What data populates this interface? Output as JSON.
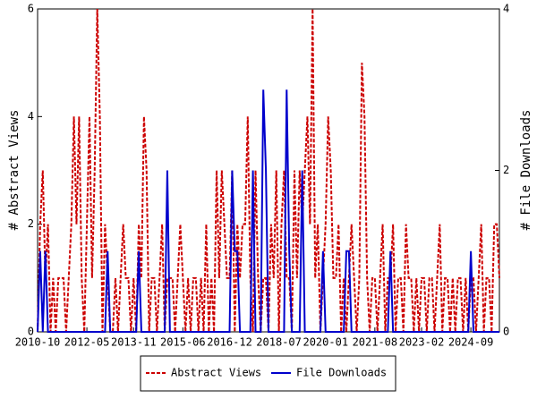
{
  "chart_data": {
    "type": "line",
    "categories": [
      "2010-10",
      null,
      null,
      null,
      null,
      null,
      null,
      null,
      null,
      null,
      null,
      null,
      null,
      null,
      null,
      null,
      null,
      null,
      null,
      "2012-05",
      null,
      null,
      null,
      null,
      null,
      null,
      null,
      null,
      null,
      null,
      null,
      null,
      null,
      null,
      null,
      null,
      null,
      "2013-11",
      null,
      null,
      null,
      null,
      null,
      null,
      null,
      null,
      null,
      null,
      null,
      null,
      null,
      null,
      null,
      null,
      null,
      null,
      "2015-06",
      null,
      null,
      null,
      null,
      null,
      null,
      null,
      null,
      null,
      null,
      null,
      null,
      null,
      null,
      null,
      null,
      null,
      "2016-12",
      null,
      null,
      null,
      null,
      null,
      null,
      null,
      null,
      null,
      null,
      null,
      null,
      null,
      null,
      null,
      null,
      null,
      null,
      "2018-07",
      null,
      null,
      null,
      null,
      null,
      null,
      null,
      null,
      null,
      null,
      null,
      null,
      null,
      null,
      null,
      null,
      null,
      "2020-01",
      null,
      null,
      null,
      null,
      null,
      null,
      null,
      null,
      null,
      null,
      null,
      null,
      null,
      null,
      null,
      null,
      null,
      null,
      "2021-08",
      null,
      null,
      null,
      null,
      null,
      null,
      null,
      null,
      null,
      null,
      null,
      null,
      null,
      null,
      null,
      null,
      null,
      "2023-02",
      null,
      null,
      null,
      null,
      null,
      null,
      null,
      null,
      null,
      null,
      null,
      null,
      null,
      null,
      null,
      null,
      null,
      null,
      "2024-09",
      null,
      null,
      null,
      null,
      null,
      null,
      null,
      null,
      null,
      null,
      null
    ],
    "series": [
      {
        "name": "Abstract Views",
        "color": "#cc0000",
        "values": [
          0,
          2,
          3,
          1,
          2,
          0,
          1,
          0,
          1,
          1,
          1,
          0,
          1,
          2,
          4,
          2,
          4,
          1,
          0,
          2,
          4,
          1,
          3,
          6,
          4,
          0,
          2,
          1,
          0,
          0,
          1,
          0,
          1,
          2,
          1,
          1,
          0,
          1,
          0,
          2,
          1,
          4,
          3,
          0,
          1,
          1,
          0,
          1,
          2,
          0,
          1,
          1,
          1,
          0,
          1,
          2,
          1,
          0,
          1,
          0,
          1,
          1,
          0,
          1,
          0,
          2,
          0,
          1,
          0,
          3,
          1,
          3,
          2,
          1,
          1,
          3,
          0,
          2,
          1,
          2,
          2,
          4,
          1,
          0,
          3,
          1,
          0,
          1,
          1,
          0,
          2,
          1,
          3,
          0,
          2,
          3,
          1,
          1,
          0,
          3,
          1,
          3,
          2,
          3,
          4,
          2,
          6,
          1,
          2,
          0,
          1,
          2,
          4,
          3,
          1,
          1,
          2,
          0,
          1,
          0,
          1,
          2,
          1,
          0,
          1,
          5,
          4,
          1,
          0,
          1,
          1,
          0,
          1,
          2,
          0,
          1,
          1,
          2,
          0,
          1,
          1,
          0,
          2,
          1,
          1,
          0,
          1,
          0,
          1,
          1,
          0,
          1,
          1,
          0,
          1,
          2,
          0,
          1,
          1,
          0,
          1,
          0,
          1,
          1,
          0,
          1,
          0,
          1,
          1,
          0,
          1,
          2,
          0,
          1,
          1,
          0,
          2,
          2,
          1
        ]
      },
      {
        "name": "File Downloads",
        "color": "#0000cc",
        "axis": "y2",
        "values": [
          0,
          1,
          0,
          1,
          0,
          0,
          0,
          0,
          0,
          0,
          0,
          0,
          0,
          0,
          0,
          0,
          0,
          0,
          0,
          0,
          0,
          0,
          0,
          0,
          0,
          0,
          0,
          1,
          0,
          0,
          0,
          0,
          0,
          0,
          0,
          0,
          0,
          0,
          0,
          1,
          0,
          0,
          0,
          0,
          0,
          0,
          0,
          0,
          0,
          0,
          2,
          0,
          0,
          0,
          0,
          0,
          0,
          0,
          0,
          0,
          0,
          0,
          0,
          0,
          0,
          0,
          0,
          0,
          0,
          0,
          0,
          0,
          0,
          0,
          0,
          2,
          1,
          1,
          0,
          0,
          0,
          0,
          0,
          2,
          0,
          0,
          0,
          3,
          2,
          0,
          0,
          0,
          0,
          0,
          0,
          0,
          3,
          1,
          0,
          0,
          0,
          0,
          2,
          0,
          0,
          0,
          0,
          0,
          0,
          0,
          1,
          0,
          0,
          0,
          0,
          0,
          0,
          0,
          0,
          1,
          1,
          0,
          0,
          0,
          0,
          0,
          0,
          0,
          0,
          0,
          0,
          0,
          0,
          0,
          0,
          0,
          1,
          0,
          0,
          0,
          0,
          0,
          0,
          0,
          0,
          0,
          0,
          0,
          0,
          0,
          0,
          0,
          0,
          0,
          0,
          0,
          0,
          0,
          0,
          0,
          0,
          0,
          0,
          0,
          0,
          0,
          0,
          1,
          0,
          0,
          0,
          0,
          0,
          0,
          0,
          0,
          0,
          0,
          0
        ]
      }
    ],
    "y_label": "# Abstract Views",
    "y2_label": "# File Downloads",
    "ylim": [
      0,
      6
    ],
    "yticks": [
      0,
      2,
      4,
      6
    ],
    "y2lim": [
      0,
      4
    ],
    "y2ticks": [
      0,
      2,
      4
    ],
    "legend": "bottom"
  }
}
